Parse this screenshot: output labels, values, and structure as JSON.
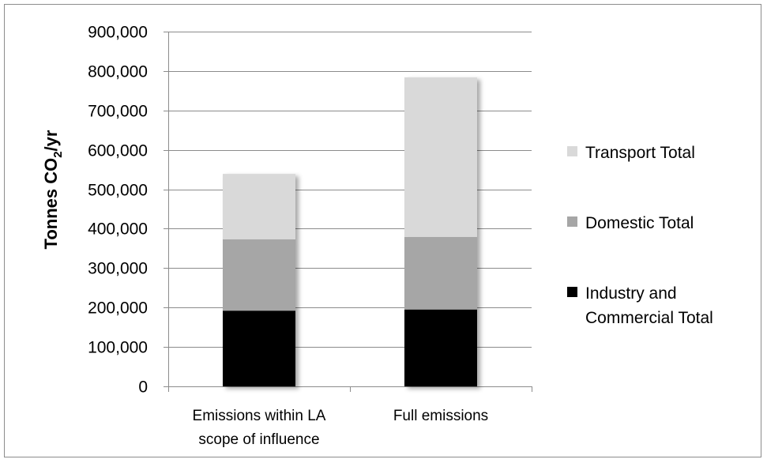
{
  "chart_data": {
    "type": "bar",
    "stacked": true,
    "categories": [
      [
        "Emissions within LA",
        "scope of influence"
      ],
      [
        "Full emissions"
      ]
    ],
    "series": [
      {
        "name": "Industry and Commercial Total",
        "name_lines": [
          "Industry and",
          "Commercial Total"
        ],
        "values": [
          192000,
          195000
        ],
        "color": "#000000"
      },
      {
        "name": "Domestic Total",
        "name_lines": [
          "Domestic Total"
        ],
        "values": [
          181000,
          184000
        ],
        "color": "#a6a6a6"
      },
      {
        "name": "Transport Total",
        "name_lines": [
          "Transport Total"
        ],
        "values": [
          166000,
          405000
        ],
        "color": "#d9d9d9"
      }
    ],
    "ylabel": "Tonnes CO2/yr",
    "ylabel_parts": {
      "pre": "Tonnes CO",
      "sub": "2",
      "post": "/yr"
    },
    "ylim": [
      0,
      900000
    ],
    "yticks": [
      "0",
      "100,000",
      "200,000",
      "300,000",
      "400,000",
      "500,000",
      "600,000",
      "700,000",
      "800,000",
      "900,000"
    ],
    "grid": true,
    "legend_position": "right"
  }
}
